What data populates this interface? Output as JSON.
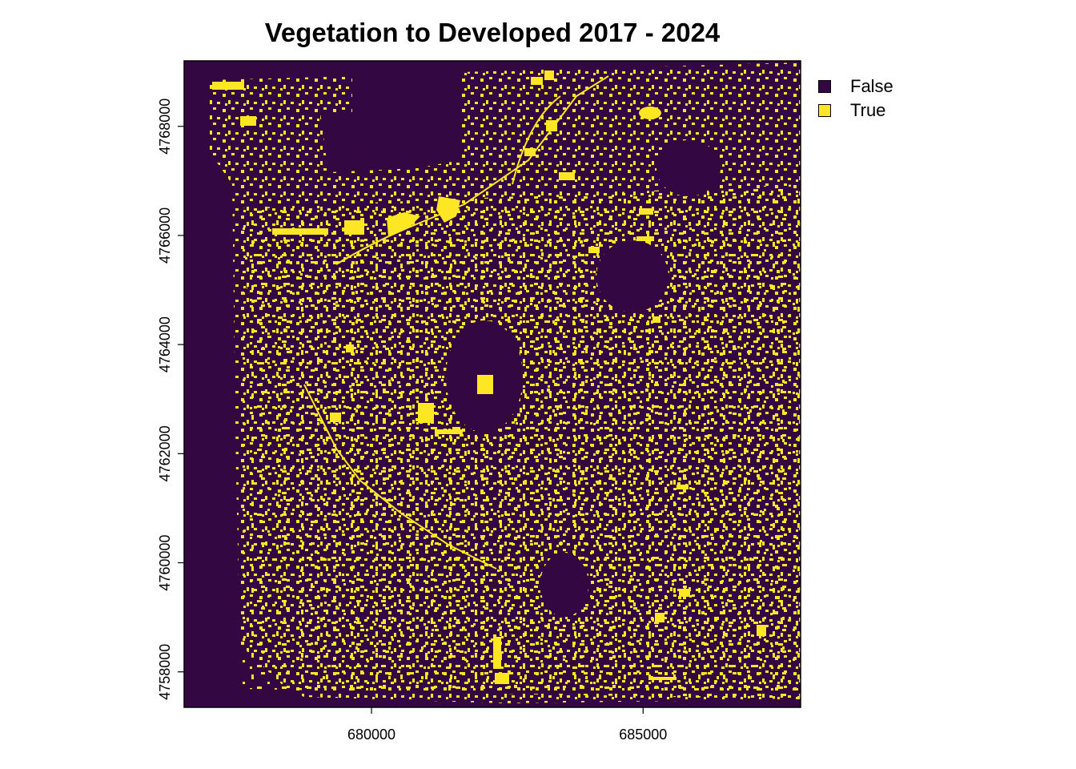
{
  "chart_data": {
    "type": "heatmap",
    "title": "Vegetation to Developed 2017 - 2024",
    "x_ticks": [
      "680000",
      "685000"
    ],
    "x_tick_values": [
      680000,
      685000
    ],
    "y_ticks": [
      "4758000",
      "4760000",
      "4762000",
      "4764000",
      "4766000",
      "4768000"
    ],
    "y_tick_values": [
      4758000,
      4760000,
      4762000,
      4764000,
      4766000,
      4768000
    ],
    "xlim": [
      676550,
      687900
    ],
    "ylim": [
      4757350,
      4769200
    ],
    "categories": [
      "False",
      "True"
    ],
    "legend_position": "top-right",
    "grid": false
  },
  "legend": {
    "items": [
      {
        "label": "False",
        "color": "#330742"
      },
      {
        "label": "True",
        "color": "#FDE725"
      }
    ]
  },
  "colors": {
    "false": "#330742",
    "true": "#FDE725",
    "background": "#ffffff"
  }
}
